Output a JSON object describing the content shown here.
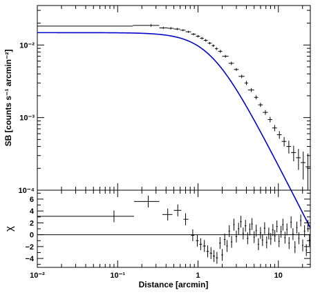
{
  "chart_data": [
    {
      "panel": "surface-brightness",
      "type": "line",
      "ylabel": "SB [counts s⁻¹ arcmin⁻²]",
      "xscale": "log",
      "yscale": "log",
      "xlim": [
        0.01,
        25
      ],
      "ylim": [
        0.0001,
        0.035
      ],
      "y_tick_labels": [
        {
          "value": 0.01,
          "label": "10⁻²"
        },
        {
          "value": 0.001,
          "label": "10⁻³"
        },
        {
          "value": 0.0001,
          "label": "10⁻⁴"
        }
      ],
      "model_color": "#0000cc",
      "data_color": "#000000",
      "model": {
        "beta_model": {
          "S0": 0.0148,
          "rc_arcmin": 1.45,
          "slope": 2.05
        }
      },
      "data": [
        {
          "x": 0.01,
          "y": 0.0182,
          "xlo": 0.01,
          "xhi": 0.155,
          "yerr": 0.0004
        },
        {
          "x": 0.26,
          "y": 0.0186,
          "xlo": 0.155,
          "xhi": 0.33,
          "yerr": 0.0007
        },
        {
          "x": 0.37,
          "y": 0.0172,
          "xlo": 0.33,
          "xhi": 0.42,
          "yerr": 0.0006
        },
        {
          "x": 0.46,
          "y": 0.017,
          "xlo": 0.42,
          "xhi": 0.5,
          "yerr": 0.0006
        },
        {
          "x": 0.55,
          "y": 0.0166,
          "xlo": 0.5,
          "xhi": 0.6,
          "yerr": 0.0006
        },
        {
          "x": 0.65,
          "y": 0.016,
          "xlo": 0.6,
          "xhi": 0.7,
          "yerr": 0.0005
        },
        {
          "x": 0.76,
          "y": 0.0152,
          "xlo": 0.7,
          "xhi": 0.82,
          "yerr": 0.0005
        },
        {
          "x": 0.88,
          "y": 0.0141,
          "xlo": 0.82,
          "xhi": 0.94,
          "yerr": 0.0005
        },
        {
          "x": 1.0,
          "y": 0.0132,
          "xlo": 0.94,
          "xhi": 1.06,
          "yerr": 0.0005
        },
        {
          "x": 1.12,
          "y": 0.0124,
          "xlo": 1.06,
          "xhi": 1.18,
          "yerr": 0.0005
        },
        {
          "x": 1.25,
          "y": 0.0116,
          "xlo": 1.18,
          "xhi": 1.32,
          "yerr": 0.0005
        },
        {
          "x": 1.4,
          "y": 0.0106,
          "xlo": 1.32,
          "xhi": 1.48,
          "yerr": 0.0004
        },
        {
          "x": 1.55,
          "y": 0.0098,
          "xlo": 1.48,
          "xhi": 1.62,
          "yerr": 0.0004
        },
        {
          "x": 1.7,
          "y": 0.0089,
          "xlo": 1.62,
          "xhi": 1.78,
          "yerr": 0.0004
        },
        {
          "x": 1.9,
          "y": 0.0082,
          "xlo": 1.78,
          "xhi": 2.0,
          "yerr": 0.0004
        },
        {
          "x": 2.2,
          "y": 0.007,
          "xlo": 2.0,
          "xhi": 2.4,
          "yerr": 0.0003
        },
        {
          "x": 2.6,
          "y": 0.0056,
          "xlo": 2.4,
          "xhi": 2.8,
          "yerr": 0.0003
        },
        {
          "x": 3.0,
          "y": 0.0046,
          "xlo": 2.8,
          "xhi": 3.2,
          "yerr": 0.0002
        },
        {
          "x": 3.5,
          "y": 0.0037,
          "xlo": 3.2,
          "xhi": 3.8,
          "yerr": 0.0002
        },
        {
          "x": 4.0,
          "y": 0.003,
          "xlo": 3.8,
          "xhi": 4.2,
          "yerr": 0.0002
        },
        {
          "x": 4.6,
          "y": 0.0024,
          "xlo": 4.2,
          "xhi": 5.0,
          "yerr": 0.00015
        },
        {
          "x": 5.3,
          "y": 0.0019,
          "xlo": 5.0,
          "xhi": 5.6,
          "yerr": 0.00012
        },
        {
          "x": 6.0,
          "y": 0.0015,
          "xlo": 5.6,
          "xhi": 6.4,
          "yerr": 0.0001
        },
        {
          "x": 6.9,
          "y": 0.00118,
          "xlo": 6.4,
          "xhi": 7.4,
          "yerr": 9e-05
        },
        {
          "x": 7.9,
          "y": 0.00094,
          "xlo": 7.4,
          "xhi": 8.4,
          "yerr": 8e-05
        },
        {
          "x": 9.0,
          "y": 0.00072,
          "xlo": 8.4,
          "xhi": 9.6,
          "yerr": 7e-05
        },
        {
          "x": 10.3,
          "y": 0.00058,
          "xlo": 9.6,
          "xhi": 11.0,
          "yerr": 7e-05
        },
        {
          "x": 11.8,
          "y": 0.00047,
          "xlo": 11.0,
          "xhi": 12.6,
          "yerr": 7e-05
        },
        {
          "x": 13.5,
          "y": 0.0004,
          "xlo": 12.6,
          "xhi": 14.4,
          "yerr": 8e-05
        },
        {
          "x": 15.5,
          "y": 0.00033,
          "xlo": 14.4,
          "xhi": 16.6,
          "yerr": 8e-05
        },
        {
          "x": 17.8,
          "y": 0.00028,
          "xlo": 16.6,
          "xhi": 19.0,
          "yerr": 9e-05
        },
        {
          "x": 20.4,
          "y": 0.00024,
          "xlo": 19.0,
          "xhi": 21.8,
          "yerr": 0.0001
        },
        {
          "x": 23.3,
          "y": 0.00021,
          "xlo": 21.8,
          "xhi": 24.8,
          "yerr": 0.00011
        }
      ]
    },
    {
      "panel": "residuals",
      "type": "scatter",
      "xlabel": "Distance [arcmin]",
      "ylabel": "χ",
      "xscale": "log",
      "xlim": [
        0.01,
        25
      ],
      "ylim": [
        -5.5,
        7.5
      ],
      "y_ticks": [
        6,
        4,
        2,
        0,
        -2,
        -4
      ],
      "x_tick_labels": [
        {
          "value": 0.01,
          "label": "10⁻²"
        },
        {
          "value": 0.1,
          "label": "10⁻¹"
        },
        {
          "value": 1,
          "label": "1"
        },
        {
          "value": 10,
          "label": "10"
        }
      ],
      "zero_line": true,
      "data": [
        {
          "x": 0.09,
          "y": 3.1,
          "xlo": 0.01,
          "xhi": 0.16,
          "yerr": 1.0
        },
        {
          "x": 0.24,
          "y": 5.6,
          "xlo": 0.16,
          "xhi": 0.33,
          "yerr": 1.0
        },
        {
          "x": 0.42,
          "y": 3.4,
          "xlo": 0.36,
          "xhi": 0.48,
          "yerr": 1.0
        },
        {
          "x": 0.56,
          "y": 4.1,
          "xlo": 0.5,
          "xhi": 0.62,
          "yerr": 1.0
        },
        {
          "x": 0.7,
          "y": 2.6,
          "xlo": 0.66,
          "xhi": 0.76,
          "yerr": 1.0
        },
        {
          "x": 0.86,
          "y": -0.1,
          "xlo": 0.82,
          "xhi": 0.9,
          "yerr": 1.0
        },
        {
          "x": 0.98,
          "y": -1.0,
          "xlo": 0.94,
          "xhi": 1.02,
          "yerr": 1.0
        },
        {
          "x": 1.08,
          "y": -1.6,
          "xlo": 1.04,
          "xhi": 1.12,
          "yerr": 1.0
        },
        {
          "x": 1.2,
          "y": -1.9,
          "xlo": 1.15,
          "xhi": 1.25,
          "yerr": 1.0
        },
        {
          "x": 1.32,
          "y": -2.8,
          "xlo": 1.27,
          "xhi": 1.37,
          "yerr": 1.0
        },
        {
          "x": 1.45,
          "y": -3.1,
          "xlo": 1.4,
          "xhi": 1.5,
          "yerr": 1.0
        },
        {
          "x": 1.58,
          "y": -3.6,
          "xlo": 1.53,
          "xhi": 1.63,
          "yerr": 1.0
        },
        {
          "x": 1.72,
          "y": -3.9,
          "xlo": 1.67,
          "xhi": 1.77,
          "yerr": 1.0
        },
        {
          "x": 1.88,
          "y": -1.4,
          "xlo": 1.83,
          "xhi": 1.93,
          "yerr": 1.0
        },
        {
          "x": 2.0,
          "y": -3.4,
          "xlo": 1.95,
          "xhi": 2.05,
          "yerr": 1.0
        },
        {
          "x": 2.15,
          "y": -0.8,
          "xlo": 2.1,
          "xhi": 2.2,
          "yerr": 1.0
        },
        {
          "x": 2.3,
          "y": -1.9,
          "xlo": 2.25,
          "xhi": 2.35,
          "yerr": 1.0
        },
        {
          "x": 2.45,
          "y": 0.6,
          "xlo": 2.4,
          "xhi": 2.5,
          "yerr": 1.0
        },
        {
          "x": 2.62,
          "y": -1.2,
          "xlo": 2.56,
          "xhi": 2.68,
          "yerr": 1.0
        },
        {
          "x": 2.8,
          "y": 1.7,
          "xlo": 2.74,
          "xhi": 2.86,
          "yerr": 1.0
        },
        {
          "x": 3.0,
          "y": -0.3,
          "xlo": 2.93,
          "xhi": 3.07,
          "yerr": 1.0
        },
        {
          "x": 3.2,
          "y": 1.0,
          "xlo": 3.13,
          "xhi": 3.27,
          "yerr": 1.0
        },
        {
          "x": 3.42,
          "y": 2.2,
          "xlo": 3.34,
          "xhi": 3.5,
          "yerr": 1.0
        },
        {
          "x": 3.65,
          "y": 0.2,
          "xlo": 3.57,
          "xhi": 3.73,
          "yerr": 1.0
        },
        {
          "x": 3.9,
          "y": 1.5,
          "xlo": 3.81,
          "xhi": 3.99,
          "yerr": 1.0
        },
        {
          "x": 4.15,
          "y": -0.6,
          "xlo": 4.06,
          "xhi": 4.24,
          "yerr": 1.0
        },
        {
          "x": 4.42,
          "y": 0.9,
          "xlo": 4.32,
          "xhi": 4.52,
          "yerr": 1.0
        },
        {
          "x": 4.7,
          "y": 1.8,
          "xlo": 4.6,
          "xhi": 4.8,
          "yerr": 1.0
        },
        {
          "x": 5.0,
          "y": -0.4,
          "xlo": 4.9,
          "xhi": 5.1,
          "yerr": 1.0
        },
        {
          "x": 5.3,
          "y": 0.7,
          "xlo": 5.2,
          "xhi": 5.4,
          "yerr": 1.0
        },
        {
          "x": 5.65,
          "y": -1.6,
          "xlo": 5.53,
          "xhi": 5.77,
          "yerr": 1.0
        },
        {
          "x": 6.0,
          "y": 0.3,
          "xlo": 5.88,
          "xhi": 6.12,
          "yerr": 1.0
        },
        {
          "x": 6.35,
          "y": -0.9,
          "xlo": 6.22,
          "xhi": 6.48,
          "yerr": 1.0
        },
        {
          "x": 6.75,
          "y": 1.1,
          "xlo": 6.6,
          "xhi": 6.9,
          "yerr": 1.0
        },
        {
          "x": 7.15,
          "y": -1.3,
          "xlo": 7.0,
          "xhi": 7.3,
          "yerr": 1.0
        },
        {
          "x": 7.6,
          "y": 0.2,
          "xlo": 7.44,
          "xhi": 7.76,
          "yerr": 1.0
        },
        {
          "x": 8.05,
          "y": -0.7,
          "xlo": 7.88,
          "xhi": 8.22,
          "yerr": 1.0
        },
        {
          "x": 8.55,
          "y": 0.8,
          "xlo": 8.37,
          "xhi": 8.73,
          "yerr": 1.0
        },
        {
          "x": 9.05,
          "y": -0.2,
          "xlo": 8.86,
          "xhi": 9.24,
          "yerr": 1.0
        },
        {
          "x": 9.6,
          "y": 1.4,
          "xlo": 9.4,
          "xhi": 9.8,
          "yerr": 1.0
        },
        {
          "x": 10.2,
          "y": -1.1,
          "xlo": 9.99,
          "xhi": 10.41,
          "yerr": 1.0
        },
        {
          "x": 10.8,
          "y": 0.5,
          "xlo": 10.58,
          "xhi": 11.02,
          "yerr": 1.0
        },
        {
          "x": 11.4,
          "y": 1.7,
          "xlo": 11.17,
          "xhi": 11.63,
          "yerr": 1.0
        },
        {
          "x": 12.1,
          "y": -0.5,
          "xlo": 11.86,
          "xhi": 12.34,
          "yerr": 1.0
        },
        {
          "x": 12.8,
          "y": 0.9,
          "xlo": 12.55,
          "xhi": 13.05,
          "yerr": 1.0
        },
        {
          "x": 13.6,
          "y": -1.4,
          "xlo": 13.33,
          "xhi": 13.87,
          "yerr": 1.0
        },
        {
          "x": 14.4,
          "y": 2.1,
          "xlo": 14.12,
          "xhi": 14.68,
          "yerr": 1.0
        },
        {
          "x": 15.2,
          "y": 0.1,
          "xlo": 14.9,
          "xhi": 15.5,
          "yerr": 1.0
        },
        {
          "x": 16.1,
          "y": -2.1,
          "xlo": 15.79,
          "xhi": 16.41,
          "yerr": 1.0
        },
        {
          "x": 17.0,
          "y": 1.2,
          "xlo": 16.67,
          "xhi": 17.33,
          "yerr": 1.0
        },
        {
          "x": 18.0,
          "y": -0.6,
          "xlo": 17.65,
          "xhi": 18.35,
          "yerr": 1.0
        },
        {
          "x": 19.0,
          "y": 2.4,
          "xlo": 18.63,
          "xhi": 19.37,
          "yerr": 1.0
        },
        {
          "x": 20.1,
          "y": -1.8,
          "xlo": 19.71,
          "xhi": 20.49,
          "yerr": 1.0
        },
        {
          "x": 21.2,
          "y": 0.6,
          "xlo": 20.79,
          "xhi": 21.61,
          "yerr": 1.0
        },
        {
          "x": 22.3,
          "y": -2.6,
          "xlo": 21.87,
          "xhi": 22.73,
          "yerr": 1.0
        },
        {
          "x": 23.4,
          "y": 1.5,
          "xlo": 22.95,
          "xhi": 23.85,
          "yerr": 1.0
        },
        {
          "x": 24.4,
          "y": -0.9,
          "xlo": 23.95,
          "xhi": 24.85,
          "yerr": 1.0
        }
      ]
    }
  ]
}
